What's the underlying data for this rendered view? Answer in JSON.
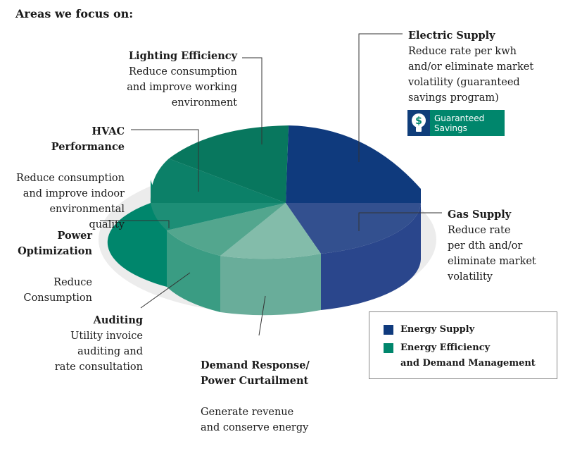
{
  "heading": "Areas we focus on:",
  "callouts": {
    "electric": {
      "title": "Electric Supply",
      "body": "Reduce rate per kwh\nand/or eliminate market\nvolatility (guaranteed\nsavings program)"
    },
    "lighting": {
      "title": "Lighting Efficiency",
      "body": "Reduce consumption\nand improve working\nenvironment"
    },
    "hvac": {
      "title": "HVAC\nPerformance",
      "body": "Reduce consumption\nand improve indoor\nenvironmental\nquality"
    },
    "power": {
      "title": "Power\nOptimization",
      "body": "Reduce\nConsumption"
    },
    "gas": {
      "title": "Gas Supply",
      "body": "Reduce rate\nper dth and/or\neliminate market\nvolatility"
    },
    "auditing": {
      "title": "Auditing",
      "body": "Utility invoice\nauditing and\nrate consultation"
    },
    "demand": {
      "title": "Demand Response/\nPower Curtailment",
      "body": "Generate revenue\nand conserve energy"
    }
  },
  "badge": {
    "label": "Guaranteed\nSavings",
    "icon": "lightbulb-dollar-icon"
  },
  "legend": {
    "supply": {
      "label": "Energy Supply",
      "color": "#0f3a7d"
    },
    "efficiency": {
      "label": "Energy Efficiency\nand Demand Management",
      "color": "#00866c"
    }
  }
}
